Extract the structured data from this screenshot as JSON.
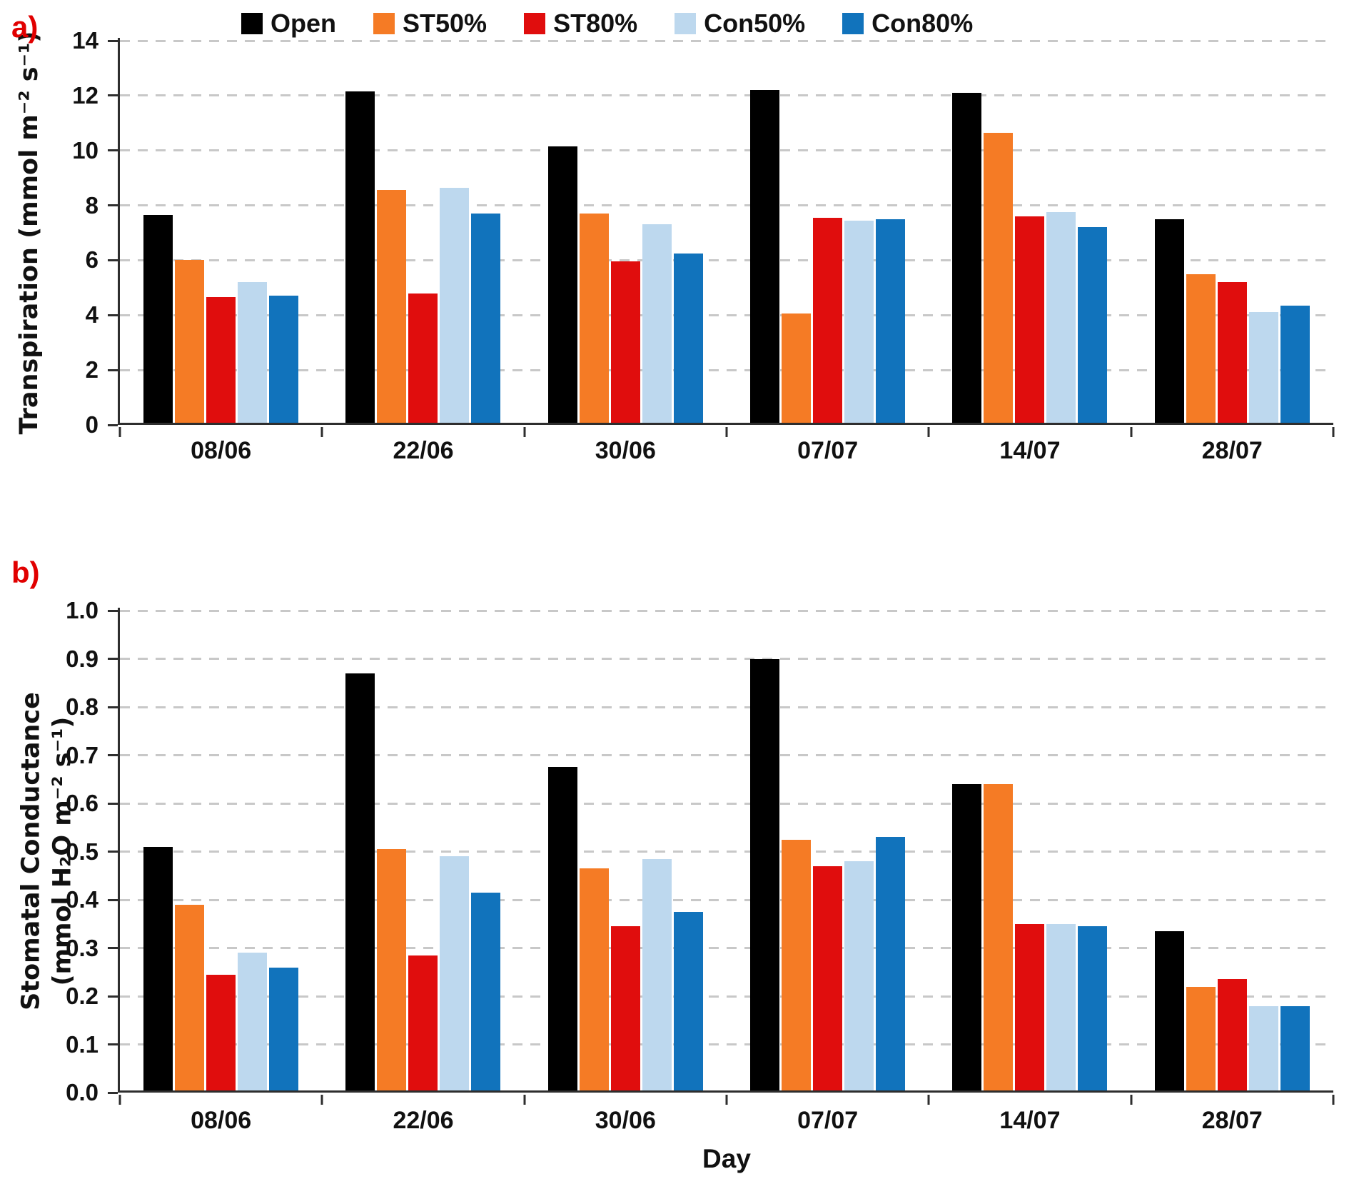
{
  "panels": {
    "a_label": "a)",
    "b_label": "b)"
  },
  "legend": {
    "position": "top-left",
    "items": [
      "Open",
      "ST50%",
      "ST80%",
      "Con50%",
      "Con80%"
    ]
  },
  "colors": {
    "open": "#000000",
    "st50": "#F57B25",
    "st80": "#E00D0D",
    "con50": "#BDD8EE",
    "con80": "#1173BC",
    "panel_label": "#e10000",
    "gridline": "#c8c8c8",
    "axis": "#2e2e2e"
  },
  "chart_data": [
    {
      "id": "a",
      "type": "bar",
      "panel_label": "a)",
      "title": "",
      "ylabel": "Transpiration (mmol m⁻² s⁻¹)",
      "ylabel_lines": [
        "Transpiration (mmol m⁻² s⁻¹)"
      ],
      "xlabel": "",
      "categories": [
        "08/06",
        "22/06",
        "30/06",
        "07/07",
        "14/07",
        "28/07"
      ],
      "series": [
        {
          "name": "Open",
          "color": "#000000",
          "values": [
            7.65,
            12.15,
            10.15,
            12.2,
            12.1,
            7.5
          ]
        },
        {
          "name": "ST50%",
          "color": "#F57B25",
          "values": [
            6.0,
            8.55,
            7.7,
            4.05,
            10.65,
            5.5
          ]
        },
        {
          "name": "ST80%",
          "color": "#E00D0D",
          "values": [
            4.65,
            4.8,
            5.95,
            7.55,
            7.6,
            5.2
          ]
        },
        {
          "name": "Con50%",
          "color": "#BDD8EE",
          "values": [
            5.2,
            8.65,
            7.3,
            7.45,
            7.75,
            4.1
          ]
        },
        {
          "name": "Con80%",
          "color": "#1173BC",
          "values": [
            4.7,
            7.7,
            6.25,
            7.5,
            7.2,
            4.35
          ]
        }
      ],
      "ylim": [
        0,
        14
      ],
      "ytick_labels": [
        "0",
        "2",
        "4",
        "6",
        "8",
        "10",
        "12",
        "14"
      ],
      "ytick_values": [
        0,
        2,
        4,
        6,
        8,
        10,
        12,
        14
      ],
      "grid": "horizontal-dashed",
      "legend_position": "top"
    },
    {
      "id": "b",
      "type": "bar",
      "panel_label": "b)",
      "title": "",
      "ylabel": "Stomatal Conductance (mmol H₂O m⁻² s⁻¹)",
      "ylabel_lines": [
        "Stomatal Conductance",
        "(mmol H₂O m⁻² s⁻¹)"
      ],
      "xlabel": "Day",
      "categories": [
        "08/06",
        "22/06",
        "30/06",
        "07/07",
        "14/07",
        "28/07"
      ],
      "series": [
        {
          "name": "Open",
          "color": "#000000",
          "values": [
            0.51,
            0.87,
            0.675,
            0.9,
            0.64,
            0.335
          ]
        },
        {
          "name": "ST50%",
          "color": "#F57B25",
          "values": [
            0.39,
            0.505,
            0.465,
            0.525,
            0.64,
            0.22
          ]
        },
        {
          "name": "ST80%",
          "color": "#E00D0D",
          "values": [
            0.245,
            0.285,
            0.345,
            0.47,
            0.35,
            0.235
          ]
        },
        {
          "name": "Con50%",
          "color": "#BDD8EE",
          "values": [
            0.29,
            0.49,
            0.485,
            0.48,
            0.35,
            0.18
          ]
        },
        {
          "name": "Con80%",
          "color": "#1173BC",
          "values": [
            0.26,
            0.415,
            0.375,
            0.53,
            0.345,
            0.18
          ]
        }
      ],
      "ylim": [
        0,
        1.0
      ],
      "ytick_labels": [
        "0.0",
        "0.1",
        "0.2",
        "0.3",
        "0.4",
        "0.5",
        "0.6",
        "0.7",
        "0.8",
        "0.9",
        "1.0"
      ],
      "ytick_values": [
        0,
        0.1,
        0.2,
        0.3,
        0.4,
        0.5,
        0.6,
        0.7,
        0.8,
        0.9,
        1.0
      ],
      "grid": "horizontal-dashed",
      "legend_position": "top"
    }
  ]
}
